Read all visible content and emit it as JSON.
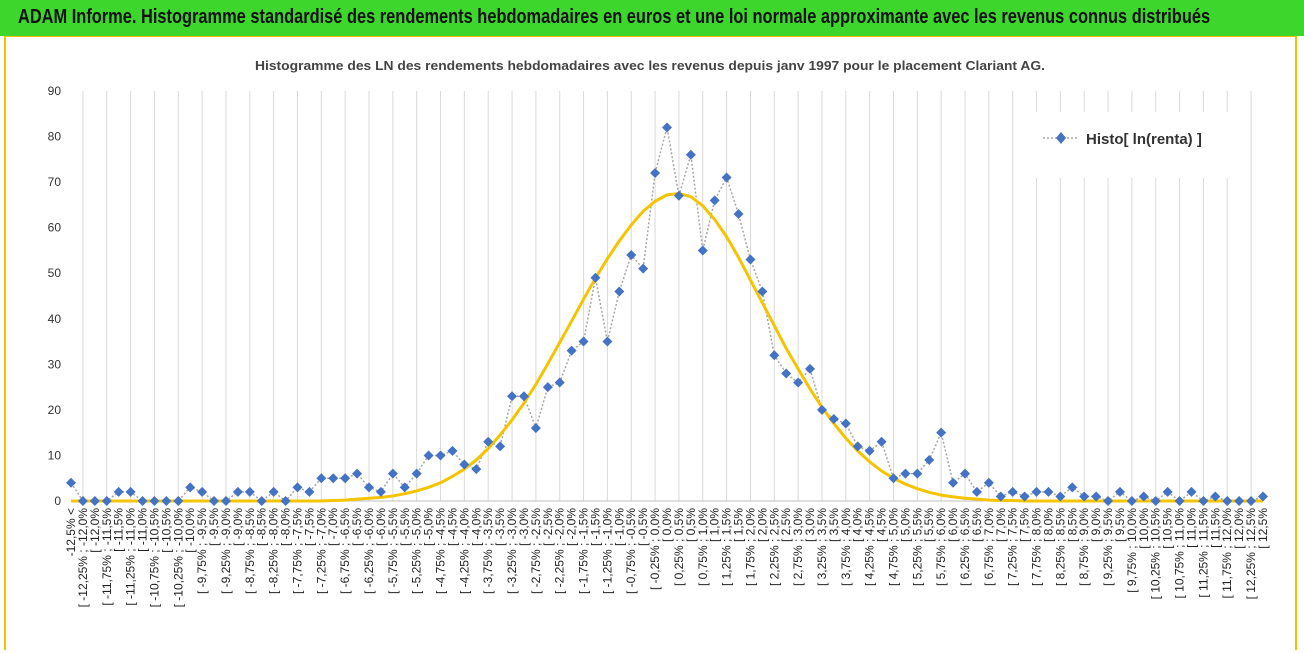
{
  "page_title": "ADAM Informe. Histogramme standardisé des rendements hebdomadaires en euros et une loi normale approximante avec les revenus connus distribués",
  "colors": {
    "banner": "#3cd62c",
    "frame": "#f2c200",
    "histogram_marker": "#4472c4",
    "histogram_line": "#a6a6a6",
    "normal_curve": "#f5c400",
    "grid": "#d9d9d9"
  },
  "chart_data": {
    "type": "line",
    "title": "Histogramme des LN des rendements hebdomadaires avec les revenus depuis janv 1997 pour le placement Clariant AG.",
    "xlabel": "",
    "ylabel": "",
    "ylim": [
      0,
      90
    ],
    "yticks": [
      "0",
      "10",
      "20",
      "30",
      "40",
      "50",
      "60",
      "70",
      "80",
      "90"
    ],
    "grid": {
      "vertical": true,
      "horizontal": false
    },
    "legend_position": "top-right",
    "categories": [
      "-12,5% <",
      "[ -12,25% ; -12,0%",
      "[ -12,0%",
      "[ -11,75% ; -11,5%",
      "[ -11,5%",
      "[ -11,25% ; -11,0%",
      "[ -11,0%",
      "[ -10,75% ; -10,5%",
      "[ -10,5%",
      "[ -10,25% ; -10,0%",
      "[ -10,0%",
      "[ -9,75% ; -9,5%",
      "[ -9,5%",
      "[ -9,25% ; -9,0%",
      "[ -9,0%",
      "[ -8,75% ; -8,5%",
      "[ -8,5%",
      "[ -8,25% ; -8,0%",
      "[ -8,0%",
      "[ -7,75% ; -7,5%",
      "[ -7,5%",
      "[ -7,25% ; -7,0%",
      "[ -7,0%",
      "[ -6,75% ; -6,5%",
      "[ -6,5%",
      "[ -6,25% ; -6,0%",
      "[ -6,0%",
      "[ -5,75% ; -5,5%",
      "[ -5,5%",
      "[ -5,25% ; -5,0%",
      "[ -5,0%",
      "[ -4,75% ; -4,5%",
      "[ -4,5%",
      "[ -4,25% ; -4,0%",
      "[ -4,0%",
      "[ -3,75% ; -3,5%",
      "[ -3,5%",
      "[ -3,25% ; -3,0%",
      "[ -3,0%",
      "[ -2,75% ; -2,5%",
      "[ -2,5%",
      "[ -2,25% ; -2,0%",
      "[ -2,0%",
      "[ -1,75% ; -1,5%",
      "[ -1,5%",
      "[ -1,25% ; -1,0%",
      "[ -1,0%",
      "[ -0,75% ; -0,5%",
      "[ -0,5%",
      "[ -0,25% ; 0,0%",
      "[ 0,0%",
      "[ 0,25% ; 0,5%",
      "[ 0,5%",
      "[ 0,75% ; 1,0%",
      "[ 1,0%",
      "[ 1,25% ; 1,5%",
      "[ 1,5%",
      "[ 1,75% ; 2,0%",
      "[ 2,0%",
      "[ 2,25% ; 2,5%",
      "[ 2,5%",
      "[ 2,75% ; 3,0%",
      "[ 3,0%",
      "[ 3,25% ; 3,5%",
      "[ 3,5%",
      "[ 3,75% ; 4,0%",
      "[ 4,0%",
      "[ 4,25% ; 4,5%",
      "[ 4,5%",
      "[ 4,75% ; 5,0%",
      "[ 5,0%",
      "[ 5,25% ; 5,5%",
      "[ 5,5%",
      "[ 5,75% ; 6,0%",
      "[ 6,0%",
      "[ 6,25% ; 6,5%",
      "[ 6,5%",
      "[ 6,75% ; 7,0%",
      "[ 7,0%",
      "[ 7,25% ; 7,5%",
      "[ 7,5%",
      "[ 7,75% ; 8,0%",
      "[ 8,0%",
      "[ 8,25% ; 8,5%",
      "[ 8,5%",
      "[ 8,75% ; 9,0%",
      "[ 9,0%",
      "[ 9,25% ; 9,5%",
      "[ 9,5%",
      "[ 9,75% ; 10,0%",
      "[ 10,0%",
      "[ 10,25% ; 10,5%",
      "[ 10,5%",
      "[ 10,75% ; 11,0%",
      "[ 11,0%",
      "[ 11,25% ; 11,5%",
      "[ 11,5%",
      "[ 11,75% ; 12,0%",
      "[ 12,0%",
      "[ 12,25% ; 12,5%",
      "[ 12,5%"
    ],
    "series": [
      {
        "name": "Histo[ ln(renta) ]",
        "type": "line-markers",
        "values": [
          4,
          0,
          0,
          0,
          2,
          2,
          0,
          0,
          0,
          0,
          3,
          2,
          0,
          0,
          2,
          2,
          0,
          2,
          0,
          3,
          2,
          5,
          5,
          5,
          6,
          3,
          2,
          6,
          3,
          6,
          10,
          10,
          11,
          8,
          7,
          13,
          12,
          23,
          23,
          16,
          25,
          26,
          33,
          35,
          49,
          35,
          46,
          54,
          51,
          72,
          82,
          67,
          76,
          55,
          66,
          71,
          63,
          53,
          46,
          32,
          28,
          26,
          29,
          20,
          18,
          17,
          12,
          11,
          13,
          5,
          6,
          6,
          9,
          15,
          4,
          6,
          2,
          4,
          1,
          2,
          1,
          2,
          2,
          1,
          3,
          1,
          1,
          0,
          2,
          0,
          1,
          0,
          2,
          0,
          2,
          0,
          1,
          0,
          0,
          0,
          1
        ]
      },
      {
        "name": "",
        "type": "line",
        "values": [
          0,
          0,
          0,
          0,
          0,
          0,
          0,
          0,
          0,
          0,
          0,
          0,
          0,
          0,
          0,
          0,
          0,
          0,
          0,
          0,
          0,
          0,
          0.1,
          0.2,
          0.4,
          0.6,
          0.8,
          1.1,
          1.6,
          2.2,
          3,
          4,
          5.4,
          7,
          9,
          11.5,
          14.5,
          17.8,
          21.5,
          25.6,
          30.1,
          34.8,
          39.5,
          44.3,
          48.9,
          53.2,
          57.1,
          60.6,
          63.6,
          65.8,
          67.2,
          67.5,
          66.8,
          64.8,
          61.8,
          58,
          53.5,
          48.5,
          43.5,
          38.5,
          33.5,
          29,
          24.6,
          20.6,
          17,
          13.8,
          11,
          8.6,
          6.6,
          5,
          3.7,
          2.7,
          1.9,
          1.3,
          0.9,
          0.6,
          0.4,
          0.2,
          0.1,
          0.1,
          0,
          0,
          0,
          0,
          0,
          0,
          0,
          0,
          0,
          0,
          0,
          0,
          0,
          0,
          0,
          0,
          0,
          0,
          0,
          0,
          0
        ]
      }
    ]
  }
}
